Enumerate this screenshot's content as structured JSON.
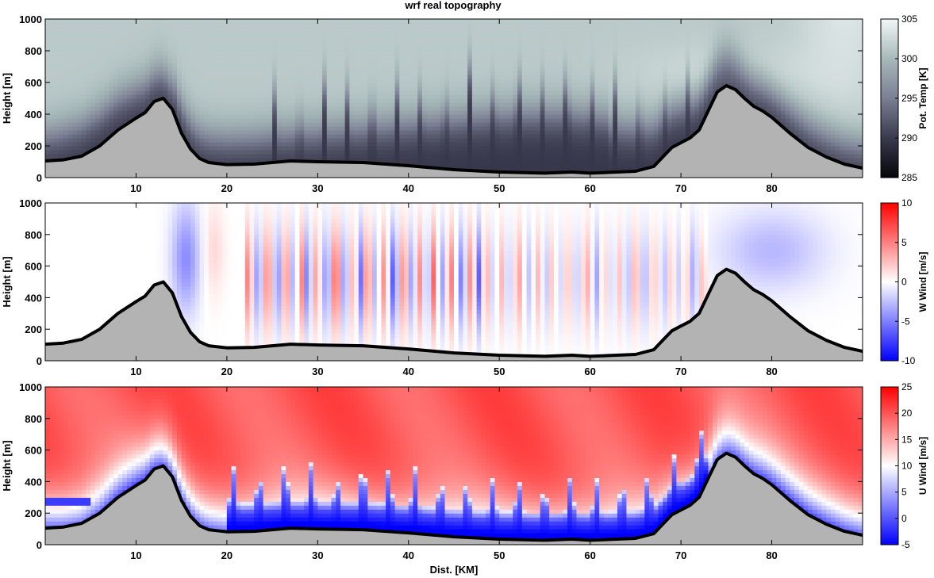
{
  "figure_title": "wrf real topography",
  "chart_data": [
    {
      "type": "heatmap",
      "title": "wrf real topography",
      "ylabel": "Height [m]",
      "xlabel": "",
      "xlim": [
        0,
        90
      ],
      "ylim": [
        0,
        1000
      ],
      "xticks": [
        10,
        20,
        30,
        40,
        50,
        60,
        70,
        80
      ],
      "yticks": [
        0,
        200,
        400,
        600,
        800,
        1000
      ],
      "colorbar": {
        "label": "Pot. Temp [K]",
        "range": [
          285,
          305
        ],
        "ticks": [
          285,
          290,
          295,
          300,
          305
        ],
        "colors": [
          "#050509",
          "#3a3a4e",
          "#7b7f93",
          "#a7b9b9",
          "#f2f7f7"
        ]
      },
      "topography": {
        "x": [
          0,
          2,
          4,
          6,
          8,
          10,
          11,
          12,
          13,
          14,
          15,
          16,
          17,
          18,
          20,
          23,
          25,
          27,
          30,
          35,
          40,
          45,
          50,
          55,
          58,
          60,
          65,
          67,
          68,
          69,
          70,
          71,
          72,
          73,
          74,
          75,
          76,
          77,
          78,
          79,
          80,
          82,
          84,
          86,
          88,
          90
        ],
        "height_m": [
          105,
          112,
          135,
          200,
          300,
          375,
          410,
          480,
          500,
          430,
          280,
          180,
          120,
          95,
          82,
          85,
          95,
          105,
          100,
          95,
          75,
          50,
          35,
          28,
          35,
          28,
          40,
          70,
          130,
          190,
          220,
          250,
          300,
          420,
          540,
          580,
          555,
          500,
          450,
          420,
          380,
          280,
          190,
          130,
          85,
          60
        ]
      }
    },
    {
      "type": "heatmap",
      "ylabel": "Height [m]",
      "xlabel": "",
      "xlim": [
        0,
        90
      ],
      "ylim": [
        0,
        1000
      ],
      "xticks": [
        10,
        20,
        30,
        40,
        50,
        60,
        70,
        80
      ],
      "yticks": [
        0,
        200,
        400,
        600,
        800,
        1000
      ],
      "colorbar": {
        "label": "W Wind [m/s]",
        "range": [
          -10,
          10
        ],
        "ticks": [
          -10,
          -5,
          0,
          5,
          10
        ],
        "colors": [
          "#0000ff",
          "#ffffff",
          "#ff0000"
        ]
      }
    },
    {
      "type": "heatmap",
      "ylabel": "Height [m]",
      "xlabel": "Dist. [KM]",
      "xlim": [
        0,
        90
      ],
      "ylim": [
        0,
        1000
      ],
      "xticks": [
        10,
        20,
        30,
        40,
        50,
        60,
        70,
        80
      ],
      "yticks": [
        0,
        200,
        400,
        600,
        800,
        1000
      ],
      "colorbar": {
        "label": "U Wind [m/s]",
        "range": [
          -5,
          25
        ],
        "ticks": [
          -5,
          0,
          5,
          10,
          15,
          20,
          25
        ],
        "colors": [
          "#0000ff",
          "#ffffff",
          "#ff0000"
        ]
      }
    }
  ]
}
